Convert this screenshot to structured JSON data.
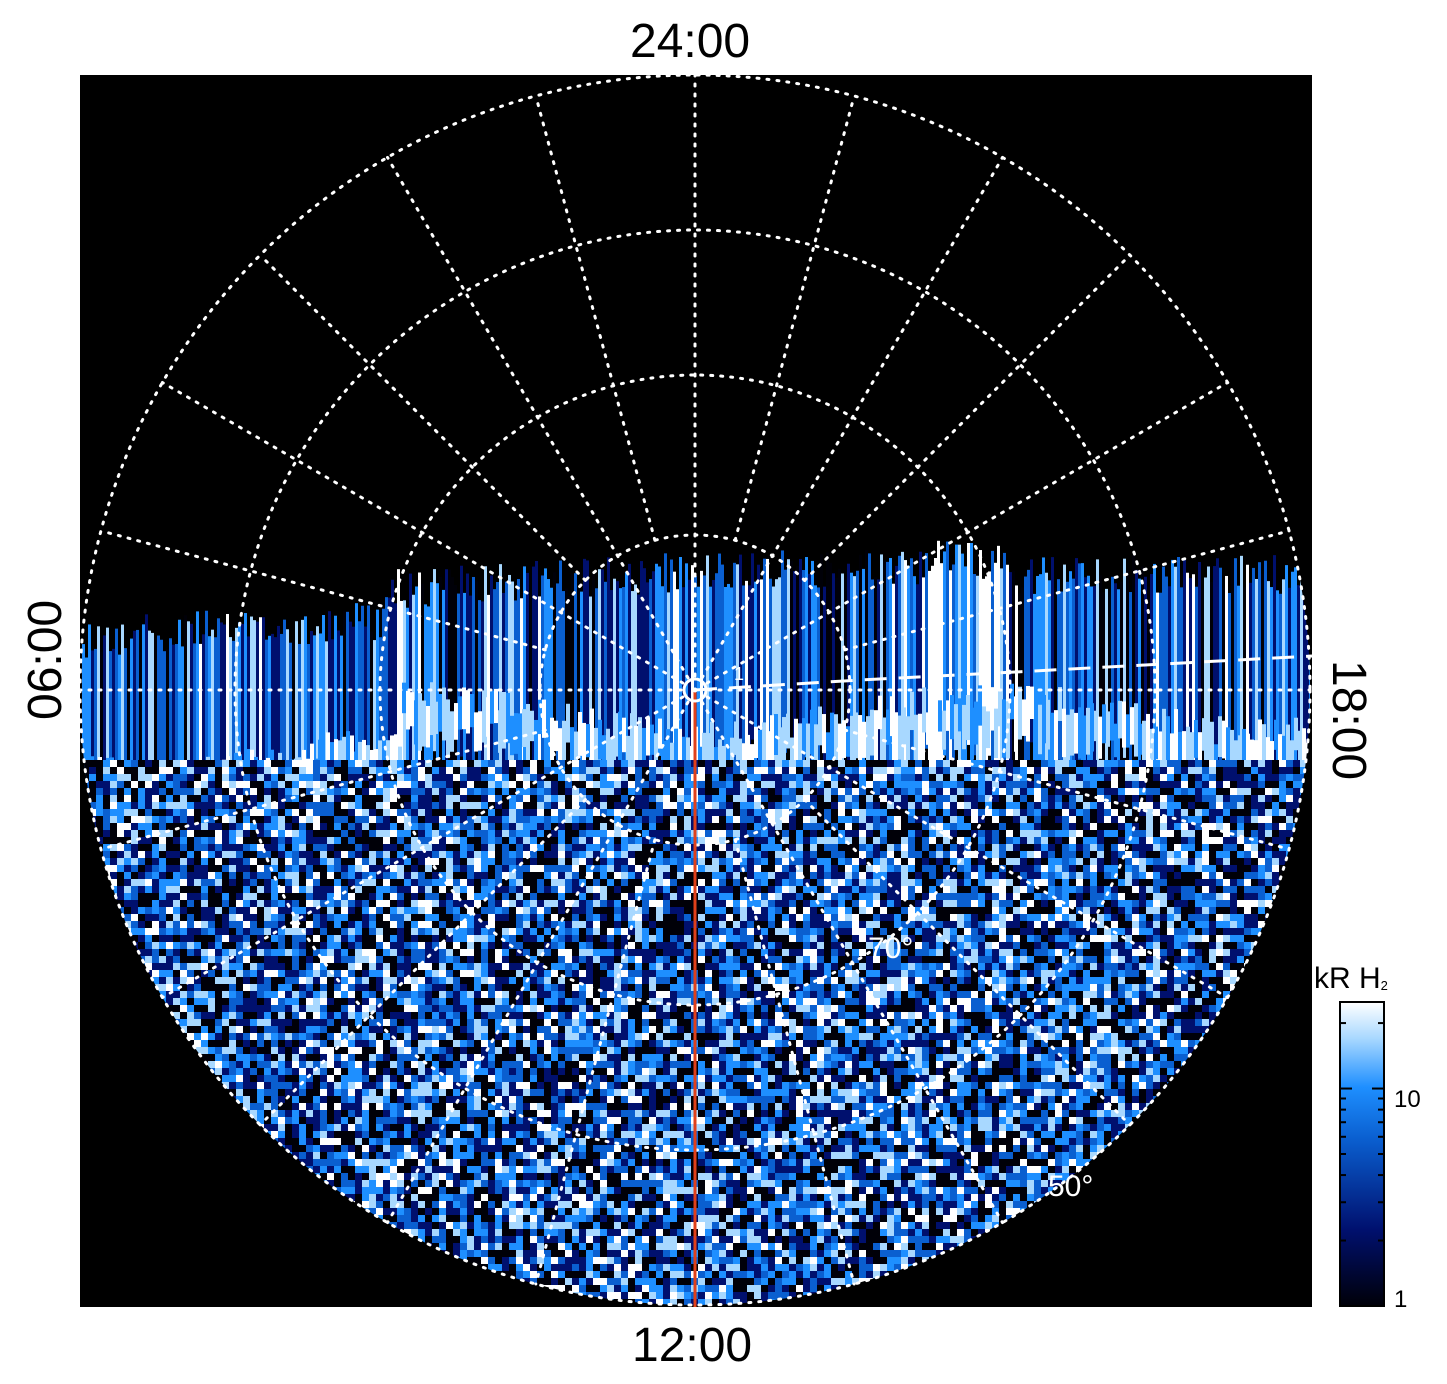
{
  "time_labels": {
    "top": "24:00",
    "bottom": "12:00",
    "left": "06:00",
    "right": "18:00"
  },
  "latitude_labels": {
    "inner": "70°",
    "outer": "50°"
  },
  "point_label": "1",
  "colorbar": {
    "unit": "kR H",
    "subscript": "2",
    "ticks": [
      "10",
      "1"
    ],
    "scale": "log",
    "range": [
      1,
      25
    ],
    "colors": [
      "#000008",
      "#00106e",
      "#0a5fd0",
      "#1e8fff",
      "#a8d8ff",
      "#ffffff"
    ]
  },
  "colors": {
    "background": "#000000",
    "grid": "#ffffff",
    "meridian": "#e0401a"
  }
}
